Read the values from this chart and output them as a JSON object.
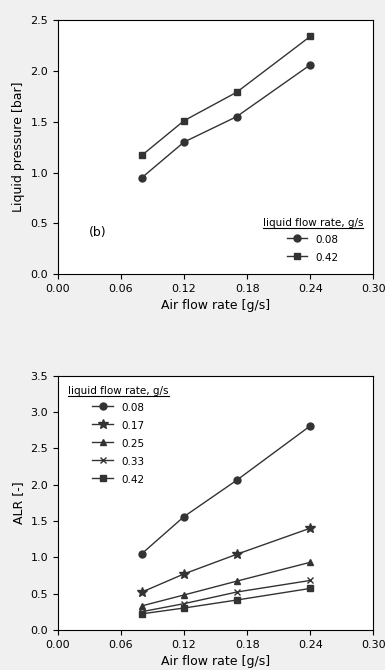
{
  "top_chart": {
    "series": [
      {
        "label": "0.08",
        "marker": "o",
        "x": [
          0.08,
          0.12,
          0.17,
          0.24
        ],
        "y": [
          0.95,
          1.3,
          1.55,
          2.06
        ]
      },
      {
        "label": "0.42",
        "marker": "s",
        "x": [
          0.08,
          0.12,
          0.17,
          0.24
        ],
        "y": [
          1.17,
          1.51,
          1.79,
          2.34
        ]
      }
    ],
    "xlabel": "Air flow rate [g/s]",
    "ylabel": "Liquid pressure [bar]",
    "xlim": [
      0.0,
      0.3
    ],
    "ylim": [
      0.0,
      2.5
    ],
    "xticks": [
      0.0,
      0.06,
      0.12,
      0.18,
      0.24,
      0.3
    ],
    "yticks": [
      0.0,
      0.5,
      1.0,
      1.5,
      2.0,
      2.5
    ],
    "legend_title": "liquid flow rate, g/s",
    "legend_loc": "lower right",
    "annotation": "(b)"
  },
  "bottom_chart": {
    "series": [
      {
        "label": "0.08",
        "marker": "o",
        "x": [
          0.08,
          0.12,
          0.17,
          0.24
        ],
        "y": [
          1.05,
          1.56,
          2.06,
          2.81
        ]
      },
      {
        "label": "0.17",
        "marker": "*",
        "x": [
          0.08,
          0.12,
          0.17,
          0.24
        ],
        "y": [
          0.52,
          0.77,
          1.04,
          1.4
        ]
      },
      {
        "label": "0.25",
        "marker": "^",
        "x": [
          0.08,
          0.12,
          0.17,
          0.24
        ],
        "y": [
          0.33,
          0.48,
          0.67,
          0.93
        ]
      },
      {
        "label": "0.33",
        "marker": "x",
        "x": [
          0.08,
          0.12,
          0.17,
          0.24
        ],
        "y": [
          0.25,
          0.36,
          0.52,
          0.68
        ]
      },
      {
        "label": "0.42",
        "marker": "s",
        "x": [
          0.08,
          0.12,
          0.17,
          0.24
        ],
        "y": [
          0.22,
          0.3,
          0.41,
          0.57
        ]
      }
    ],
    "xlabel": "Air flow rate [g/s]",
    "ylabel": "ALR [-]",
    "xlim": [
      0.0,
      0.3
    ],
    "ylim": [
      0.0,
      3.5
    ],
    "xticks": [
      0.0,
      0.06,
      0.12,
      0.18,
      0.24,
      0.3
    ],
    "yticks": [
      0.0,
      0.5,
      1.0,
      1.5,
      2.0,
      2.5,
      3.0,
      3.5
    ],
    "legend_title": "liquid flow rate, g/s",
    "legend_loc": "upper left"
  },
  "marker_color": "#333333",
  "marker_size": 5,
  "fontsize": 9,
  "background": "#f0f0f0"
}
